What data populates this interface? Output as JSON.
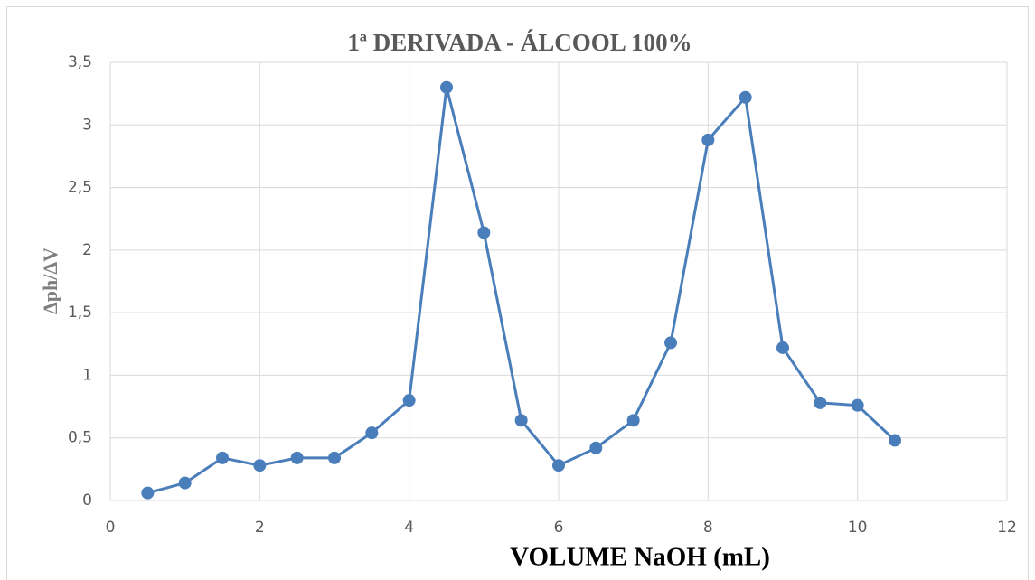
{
  "chart_data": {
    "type": "line",
    "title": "1ª DERIVADA -  ÁLCOOL 100%",
    "x_label": "VOLUME NaOH (mL)",
    "y_label": "Δph/ΔV",
    "x": [
      0.5,
      1,
      1.5,
      2,
      2.5,
      3,
      3.5,
      4,
      4.5,
      5,
      5.5,
      6,
      6.5,
      7,
      7.5,
      8,
      8.5,
      9,
      9.5,
      10,
      10.5
    ],
    "values": [
      0.06,
      0.14,
      0.34,
      0.28,
      0.34,
      0.34,
      0.54,
      0.8,
      3.3,
      2.14,
      0.64,
      0.28,
      0.42,
      0.64,
      1.26,
      2.88,
      3.22,
      1.22,
      0.78,
      0.76,
      0.48
    ],
    "color": "#4a7ebb",
    "xlim": [
      0,
      12
    ],
    "xticks": [
      0,
      2,
      4,
      6,
      8,
      10,
      12
    ],
    "ylim": [
      0,
      3.5
    ],
    "yticks": [
      0,
      {
        "value": 0.5,
        "label": "0,5"
      },
      1,
      {
        "value": 1.5,
        "label": "1,5"
      },
      2,
      {
        "value": 2.5,
        "label": "2,5"
      },
      3,
      {
        "value": 3.5,
        "label": "3,5"
      }
    ],
    "grid": true
  }
}
